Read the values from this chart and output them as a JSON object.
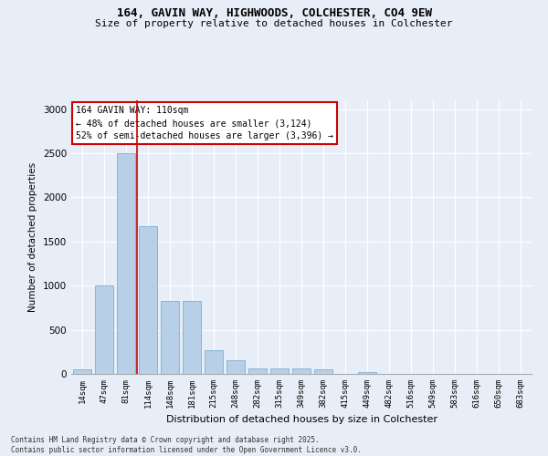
{
  "title1": "164, GAVIN WAY, HIGHWOODS, COLCHESTER, CO4 9EW",
  "title2": "Size of property relative to detached houses in Colchester",
  "xlabel": "Distribution of detached houses by size in Colchester",
  "ylabel": "Number of detached properties",
  "categories": [
    "14sqm",
    "47sqm",
    "81sqm",
    "114sqm",
    "148sqm",
    "181sqm",
    "215sqm",
    "248sqm",
    "282sqm",
    "315sqm",
    "349sqm",
    "382sqm",
    "415sqm",
    "449sqm",
    "482sqm",
    "516sqm",
    "549sqm",
    "583sqm",
    "616sqm",
    "650sqm",
    "683sqm"
  ],
  "values": [
    55,
    1000,
    2500,
    1670,
    830,
    830,
    265,
    155,
    65,
    65,
    65,
    50,
    0,
    25,
    0,
    0,
    0,
    0,
    0,
    0,
    0
  ],
  "bar_color": "#b8cfe8",
  "bar_edge_color": "#7aafd4",
  "vline_color": "#cc0000",
  "annotation_line1": "164 GAVIN WAY: 110sqm",
  "annotation_line2": "← 48% of detached houses are smaller (3,124)",
  "annotation_line3": "52% of semi-detached houses are larger (3,396) →",
  "annotation_box_color": "#ffffff",
  "annotation_box_edge": "#cc0000",
  "ylim": [
    0,
    3100
  ],
  "yticks": [
    0,
    500,
    1000,
    1500,
    2000,
    2500,
    3000
  ],
  "footer1": "Contains HM Land Registry data © Crown copyright and database right 2025.",
  "footer2": "Contains public sector information licensed under the Open Government Licence v3.0.",
  "bg_color": "#e8eef7"
}
